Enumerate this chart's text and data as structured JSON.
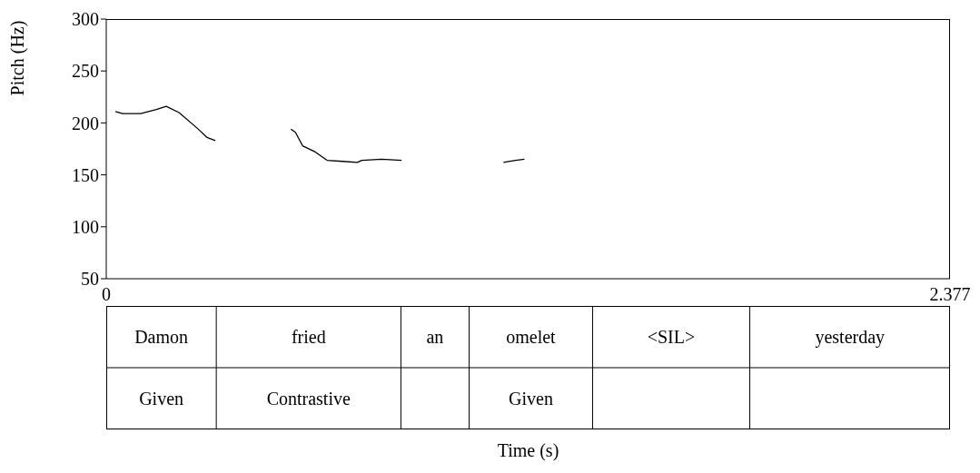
{
  "chart_data": [
    {
      "type": "line",
      "xlabel": "Time (s)",
      "ylabel": "Pitch (Hz)",
      "x": [
        0.026,
        0.046,
        0.097,
        0.141,
        0.169,
        0.205,
        0.256,
        0.284,
        0.307,
        0.41,
        0.52,
        0.533,
        0.553,
        0.589,
        0.622,
        0.666,
        0.707,
        0.72,
        0.776,
        0.832,
        0.97,
        1.119,
        1.153,
        1.178
      ],
      "series": [
        {
          "color": "#000000",
          "values": [
            211,
            209,
            209,
            213,
            216,
            210,
            195,
            186,
            183,
            null,
            194,
            191,
            178,
            172,
            164,
            163,
            162,
            164,
            165,
            164,
            null,
            162,
            164,
            165
          ]
        }
      ],
      "xlim": [
        0,
        2.377
      ],
      "xticks": [
        0,
        2.377
      ],
      "ylim": [
        50,
        300
      ],
      "yticks": [
        50,
        100,
        150,
        200,
        250,
        300
      ]
    },
    {
      "type": "other",
      "annotations": [
        "Damon",
        "fried",
        "an",
        "omelet",
        "<SIL>",
        "yesterday",
        "Given",
        "Contrastive",
        "Given"
      ]
    }
  ]
}
